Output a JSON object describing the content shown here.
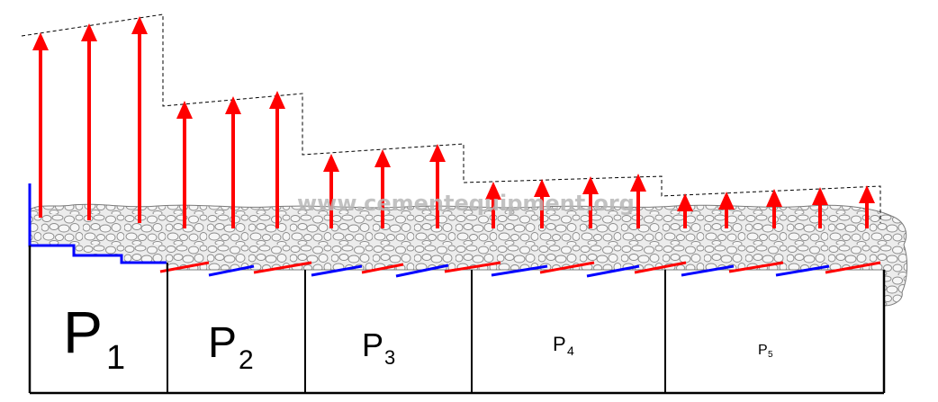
{
  "watermark": "www.cementequipment.org",
  "chambers": [
    {
      "id": "p1",
      "letter": "P",
      "index": "1"
    },
    {
      "id": "p2",
      "letter": "P",
      "index": "2"
    },
    {
      "id": "p3",
      "letter": "P",
      "index": "3"
    },
    {
      "id": "p4",
      "letter": "P",
      "index": "4"
    },
    {
      "id": "p5",
      "letter": "P",
      "index": "5"
    }
  ],
  "colors": {
    "arrow": "#ff0000",
    "grate_red": "#ff0000",
    "grate_blue": "#0000ff",
    "outline": "#000000",
    "envelope": "#000000",
    "clinker_fill": "#eeeeee",
    "clinker_stroke": "#8c8c8c"
  },
  "airflow_arrows_per_chamber": [
    3,
    3,
    3,
    4,
    5
  ]
}
